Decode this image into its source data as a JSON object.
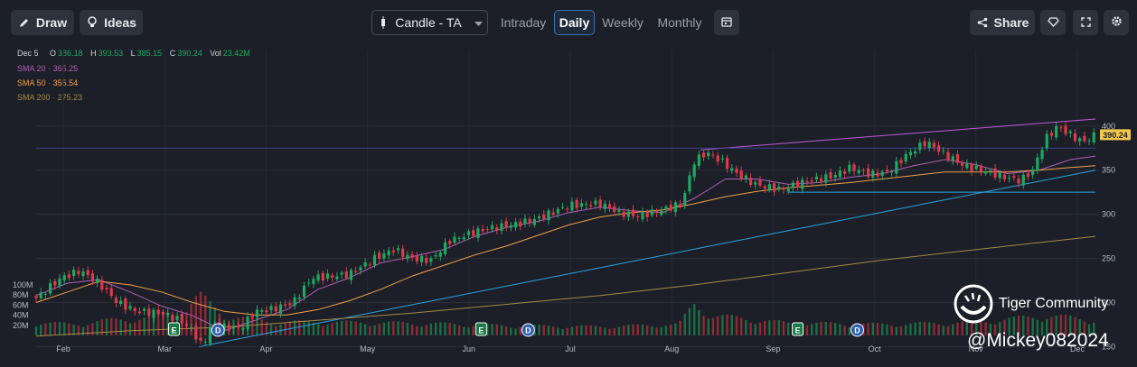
{
  "toolbar": {
    "draw_label": "Draw",
    "ideas_label": "Ideas",
    "chart_type_label": "Candle - TA",
    "periods": [
      "Intraday",
      "Daily",
      "Weekly",
      "Monthly"
    ],
    "active_period": "Daily",
    "share_label": "Share"
  },
  "info": {
    "date": "Dec 5",
    "open_key": "O",
    "open": "386.18",
    "high_key": "H",
    "high": "393.53",
    "low_key": "L",
    "low": "385.15",
    "close_key": "C",
    "close": "390.24",
    "vol_key": "Vol",
    "vol": "23.42M",
    "ma": [
      {
        "label": "SMA 20",
        "value": "365.25",
        "color": "#b05fb8"
      },
      {
        "label": "SMA 50",
        "value": "355.54",
        "color": "#f0a04b"
      },
      {
        "label": "SMA 200",
        "value": "275.23",
        "color": "#a38a46"
      }
    ]
  },
  "watermark": {
    "brand": "Tiger Community",
    "handle": "@Mickey082024"
  },
  "colors": {
    "up": "#1ea861",
    "down": "#e0384b",
    "price_tag": "#f2c94c",
    "background": "#1c1f27"
  },
  "chart_data": {
    "type": "candlestick",
    "y_axis": {
      "ticks": [
        150,
        200,
        250,
        300,
        350,
        400
      ],
      "range": [
        130,
        410
      ]
    },
    "volume_axis": {
      "ticks": [
        "20M",
        "40M",
        "60M",
        "80M",
        "100M"
      ],
      "range": [
        0,
        100
      ]
    },
    "x_axis": {
      "labels": [
        "Feb",
        "Mar",
        "Apr",
        "May",
        "Jun",
        "Jul",
        "Aug",
        "Sep",
        "Oct",
        "Nov",
        "Dec"
      ]
    },
    "last_price": "390.24",
    "close_points": [
      [
        0,
        205
      ],
      [
        8,
        228
      ],
      [
        14,
        236
      ],
      [
        20,
        222
      ],
      [
        26,
        200
      ],
      [
        32,
        190
      ],
      [
        40,
        188
      ],
      [
        46,
        180
      ],
      [
        50,
        168
      ],
      [
        53,
        150
      ],
      [
        56,
        175
      ],
      [
        60,
        172
      ],
      [
        65,
        170
      ],
      [
        70,
        190
      ],
      [
        75,
        192
      ],
      [
        82,
        200
      ],
      [
        88,
        228
      ],
      [
        95,
        230
      ],
      [
        100,
        232
      ],
      [
        108,
        250
      ],
      [
        114,
        260
      ],
      [
        120,
        250
      ],
      [
        126,
        248
      ],
      [
        132,
        270
      ],
      [
        140,
        280
      ],
      [
        146,
        285
      ],
      [
        152,
        288
      ],
      [
        160,
        295
      ],
      [
        170,
        310
      ],
      [
        180,
        312
      ],
      [
        186,
        302
      ],
      [
        192,
        298
      ],
      [
        200,
        305
      ],
      [
        206,
        312
      ],
      [
        210,
        360
      ],
      [
        214,
        370
      ],
      [
        218,
        362
      ],
      [
        224,
        345
      ],
      [
        230,
        333
      ],
      [
        238,
        328
      ],
      [
        246,
        338
      ],
      [
        254,
        343
      ],
      [
        260,
        353
      ],
      [
        266,
        345
      ],
      [
        272,
        348
      ],
      [
        278,
        368
      ],
      [
        284,
        382
      ],
      [
        290,
        368
      ],
      [
        296,
        355
      ],
      [
        302,
        350
      ],
      [
        308,
        343
      ],
      [
        314,
        338
      ],
      [
        318,
        350
      ],
      [
        322,
        385
      ],
      [
        326,
        400
      ],
      [
        330,
        390
      ],
      [
        334,
        382
      ],
      [
        338,
        390
      ]
    ],
    "volume_points": [
      [
        0,
        30
      ],
      [
        12,
        25
      ],
      [
        24,
        35
      ],
      [
        36,
        40
      ],
      [
        48,
        60
      ],
      [
        52,
        90
      ],
      [
        60,
        45
      ],
      [
        76,
        30
      ],
      [
        96,
        30
      ],
      [
        120,
        28
      ],
      [
        150,
        22
      ],
      [
        180,
        20
      ],
      [
        205,
        25
      ],
      [
        210,
        70
      ],
      [
        216,
        45
      ],
      [
        240,
        28
      ],
      [
        270,
        25
      ],
      [
        300,
        30
      ],
      [
        322,
        45
      ],
      [
        338,
        35
      ]
    ],
    "events": [
      {
        "label": "E",
        "kind": "earnings",
        "day": 44
      },
      {
        "label": "D",
        "kind": "dividend",
        "day": 58
      },
      {
        "label": "E",
        "kind": "earnings",
        "day": 142
      },
      {
        "label": "D",
        "kind": "dividend",
        "day": 157
      },
      {
        "label": "E",
        "kind": "earnings",
        "day": 243
      },
      {
        "label": "D",
        "kind": "dividend",
        "day": 262
      }
    ],
    "series": [
      {
        "name": "SMA 20",
        "points": [
          [
            0,
            208
          ],
          [
            10,
            222
          ],
          [
            20,
            226
          ],
          [
            30,
            212
          ],
          [
            40,
            196
          ],
          [
            50,
            185
          ],
          [
            60,
            168
          ],
          [
            70,
            180
          ],
          [
            80,
            192
          ],
          [
            90,
            215
          ],
          [
            100,
            228
          ],
          [
            110,
            245
          ],
          [
            120,
            252
          ],
          [
            130,
            260
          ],
          [
            140,
            275
          ],
          [
            150,
            285
          ],
          [
            160,
            292
          ],
          [
            170,
            302
          ],
          [
            180,
            308
          ],
          [
            190,
            304
          ],
          [
            200,
            302
          ],
          [
            210,
            318
          ],
          [
            220,
            340
          ],
          [
            230,
            340
          ],
          [
            240,
            334
          ],
          [
            250,
            336
          ],
          [
            260,
            342
          ],
          [
            270,
            346
          ],
          [
            280,
            355
          ],
          [
            290,
            362
          ],
          [
            300,
            356
          ],
          [
            310,
            346
          ],
          [
            320,
            350
          ],
          [
            330,
            362
          ],
          [
            338,
            366
          ]
        ]
      },
      {
        "name": "SMA 50",
        "points": [
          [
            0,
            200
          ],
          [
            10,
            212
          ],
          [
            20,
            224
          ],
          [
            30,
            220
          ],
          [
            40,
            212
          ],
          [
            50,
            200
          ],
          [
            60,
            190
          ],
          [
            70,
            186
          ],
          [
            80,
            186
          ],
          [
            90,
            192
          ],
          [
            100,
            202
          ],
          [
            110,
            215
          ],
          [
            120,
            230
          ],
          [
            130,
            242
          ],
          [
            140,
            254
          ],
          [
            150,
            264
          ],
          [
            160,
            276
          ],
          [
            170,
            288
          ],
          [
            180,
            297
          ],
          [
            190,
            302
          ],
          [
            200,
            305
          ],
          [
            210,
            312
          ],
          [
            220,
            320
          ],
          [
            230,
            326
          ],
          [
            240,
            330
          ],
          [
            250,
            333
          ],
          [
            260,
            336
          ],
          [
            270,
            340
          ],
          [
            280,
            344
          ],
          [
            290,
            348
          ],
          [
            300,
            348
          ],
          [
            310,
            348
          ],
          [
            320,
            350
          ],
          [
            330,
            353
          ],
          [
            338,
            355
          ]
        ]
      },
      {
        "name": "SMA 200",
        "points": [
          [
            0,
            162
          ],
          [
            30,
            168
          ],
          [
            60,
            172
          ],
          [
            90,
            180
          ],
          [
            120,
            188
          ],
          [
            150,
            198
          ],
          [
            180,
            208
          ],
          [
            210,
            220
          ],
          [
            240,
            234
          ],
          [
            270,
            248
          ],
          [
            300,
            260
          ],
          [
            320,
            268
          ],
          [
            338,
            275
          ]
        ]
      }
    ],
    "trendlines": [
      {
        "from": [
          52,
          150
        ],
        "to": [
          338,
          350
        ],
        "color": "#2aa4e8"
      },
      {
        "from": [
          212,
          373
        ],
        "to": [
          338,
          408
        ],
        "color": "#c15ad6"
      },
      {
        "from": [
          240,
          325
        ],
        "to": [
          338,
          325
        ],
        "color": "#2aa4e8"
      },
      {
        "from": [
          0,
          375
        ],
        "to": [
          338,
          375
        ],
        "color": "#3b3f8c"
      }
    ]
  }
}
